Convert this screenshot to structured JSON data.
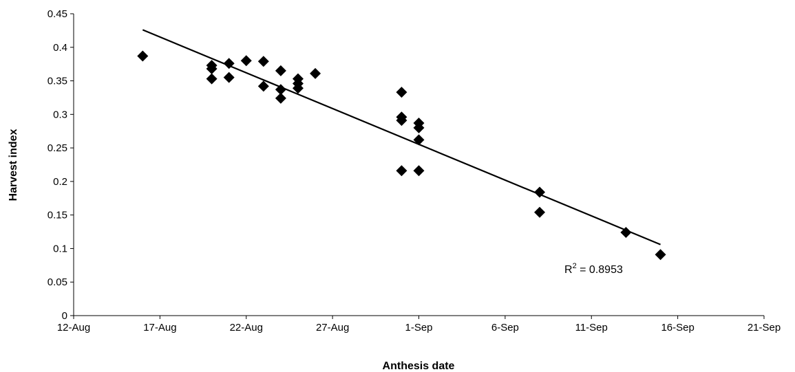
{
  "chart_data": {
    "type": "scatter",
    "title": "",
    "xlabel": "Anthesis date",
    "ylabel": "Harvest index",
    "x_ticks": [
      "12-Aug",
      "17-Aug",
      "22-Aug",
      "27-Aug",
      "1-Sep",
      "6-Sep",
      "11-Sep",
      "16-Sep",
      "21-Sep"
    ],
    "y_ticks": [
      "0",
      "0.05",
      "0.1",
      "0.15",
      "0.2",
      "0.25",
      "0.3",
      "0.35",
      "0.4",
      "0.45"
    ],
    "xlim": [
      "12-Aug",
      "21-Sep"
    ],
    "ylim": [
      0,
      0.45
    ],
    "grid": false,
    "marker": "diamond",
    "marker_color": "#000000",
    "series": [
      {
        "points": [
          {
            "x": "16-Aug",
            "y": 0.387
          },
          {
            "x": "20-Aug",
            "y": 0.373
          },
          {
            "x": "20-Aug",
            "y": 0.368
          },
          {
            "x": "20-Aug",
            "y": 0.353
          },
          {
            "x": "21-Aug",
            "y": 0.376
          },
          {
            "x": "21-Aug",
            "y": 0.355
          },
          {
            "x": "22-Aug",
            "y": 0.38
          },
          {
            "x": "23-Aug",
            "y": 0.379
          },
          {
            "x": "23-Aug",
            "y": 0.342
          },
          {
            "x": "24-Aug",
            "y": 0.365
          },
          {
            "x": "24-Aug",
            "y": 0.337
          },
          {
            "x": "24-Aug",
            "y": 0.324
          },
          {
            "x": "25-Aug",
            "y": 0.353
          },
          {
            "x": "25-Aug",
            "y": 0.346
          },
          {
            "x": "25-Aug",
            "y": 0.339
          },
          {
            "x": "26-Aug",
            "y": 0.361
          },
          {
            "x": "31-Aug",
            "y": 0.333
          },
          {
            "x": "31-Aug",
            "y": 0.296
          },
          {
            "x": "31-Aug",
            "y": 0.291
          },
          {
            "x": "31-Aug",
            "y": 0.216
          },
          {
            "x": "1-Sep",
            "y": 0.287
          },
          {
            "x": "1-Sep",
            "y": 0.28
          },
          {
            "x": "1-Sep",
            "y": 0.262
          },
          {
            "x": "1-Sep",
            "y": 0.216
          },
          {
            "x": "8-Sep",
            "y": 0.184
          },
          {
            "x": "8-Sep",
            "y": 0.154
          },
          {
            "x": "13-Sep",
            "y": 0.124
          },
          {
            "x": "15-Sep",
            "y": 0.091
          }
        ]
      }
    ],
    "trendline": {
      "type": "linear",
      "start": {
        "x": "16-Aug",
        "y": 0.426
      },
      "end": {
        "x": "15-Sep",
        "y": 0.106
      },
      "color": "#000000"
    },
    "annotation": {
      "text": "R² = 0.8953",
      "near": "end of trendline"
    }
  }
}
